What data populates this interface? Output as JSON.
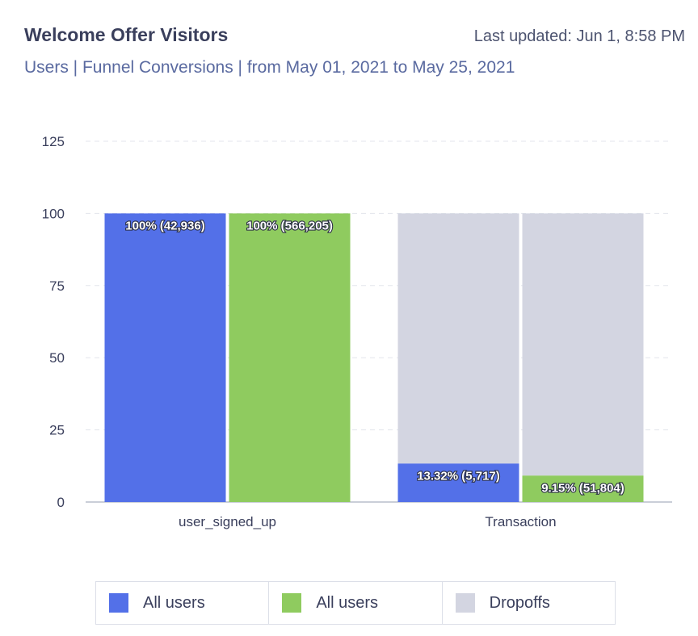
{
  "header": {
    "title": "Welcome Offer Visitors",
    "last_updated": "Last updated: Jun 1, 8:58 PM",
    "subtitle": "Users | Funnel Conversions | from May 01, 2021 to May 25, 2021"
  },
  "colors": {
    "all_users_blue": "#5370e8",
    "all_users_green": "#8fcb5f",
    "dropoffs": "#d3d5e1",
    "grid": "#e3e5ec",
    "axis_text": "#3a3f5c"
  },
  "chart_data": {
    "type": "bar",
    "stacked": true,
    "categories": [
      "user_signed_up",
      "Transaction"
    ],
    "ylim": [
      0,
      125
    ],
    "yticks": [
      0,
      25,
      50,
      75,
      100,
      125
    ],
    "grid": true,
    "legend_position": "bottom",
    "series": [
      {
        "name": "All users",
        "color": "#5370e8",
        "values": [
          100,
          13.32
        ],
        "labels": [
          "100% (42,936)",
          "13.32% (5,717)"
        ]
      },
      {
        "name": "All users",
        "color": "#8fcb5f",
        "values": [
          100,
          9.15
        ],
        "labels": [
          "100% (566,205)",
          "9.15% (51,804)"
        ]
      },
      {
        "name": "Dropoffs",
        "color": "#d3d5e1",
        "values": [
          [
            0,
            0
          ],
          [
            86.68,
            90.85
          ]
        ]
      }
    ]
  },
  "legend": [
    {
      "label": "All users",
      "color": "#5370e8"
    },
    {
      "label": "All users",
      "color": "#8fcb5f"
    },
    {
      "label": "Dropoffs",
      "color": "#d3d5e1"
    }
  ]
}
